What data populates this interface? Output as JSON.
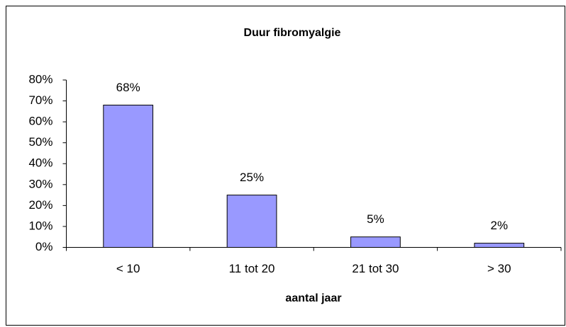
{
  "chart_data": {
    "type": "bar",
    "title": "Duur fibromyalgie",
    "x_label": "aantal jaar",
    "categories": [
      "< 10",
      "11 tot 20",
      "21 tot 30",
      "> 30"
    ],
    "values": [
      68,
      25,
      5,
      2
    ],
    "value_labels": [
      "68%",
      "25%",
      "5%",
      "2%"
    ],
    "color": "#9999ff",
    "ylim": [
      0,
      80
    ],
    "yticks": [
      {
        "value": 0,
        "label": "0%"
      },
      {
        "value": 10,
        "label": "10%"
      },
      {
        "value": 20,
        "label": "20%"
      },
      {
        "value": 30,
        "label": "30%"
      },
      {
        "value": 40,
        "label": "40%"
      },
      {
        "value": 50,
        "label": "50%"
      },
      {
        "value": 60,
        "label": "60%"
      },
      {
        "value": 70,
        "label": "70%"
      },
      {
        "value": 80,
        "label": "80%"
      }
    ],
    "grid": false
  }
}
